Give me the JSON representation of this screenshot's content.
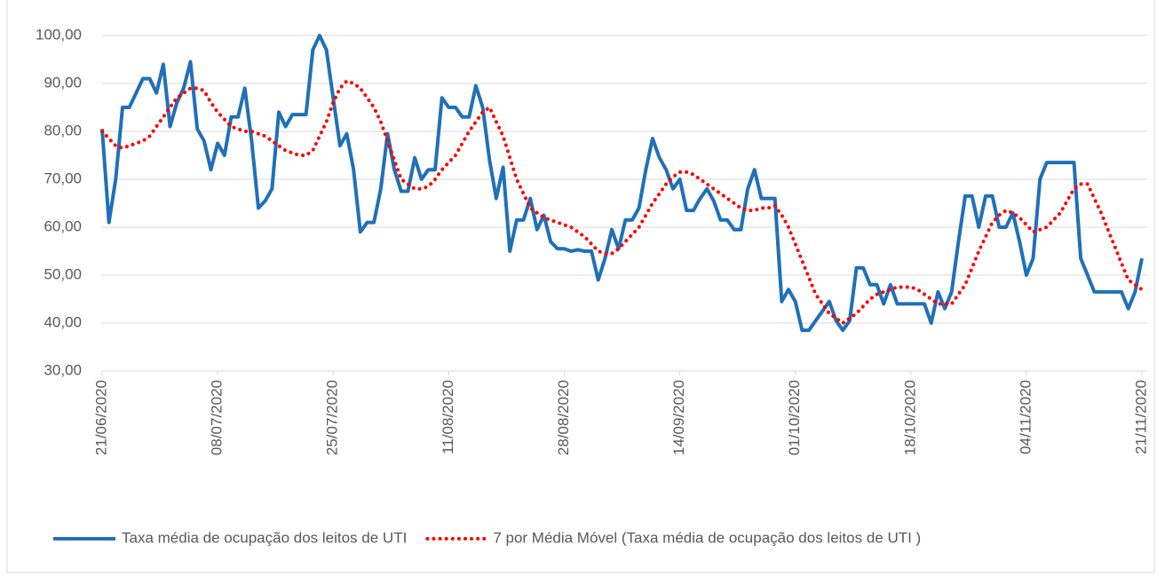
{
  "chart_data": {
    "type": "line",
    "categories": [
      "21/06/2020",
      null,
      null,
      null,
      null,
      null,
      null,
      null,
      null,
      null,
      null,
      null,
      null,
      null,
      null,
      null,
      null,
      "08/07/2020",
      null,
      null,
      null,
      null,
      null,
      null,
      null,
      null,
      null,
      null,
      null,
      null,
      null,
      null,
      null,
      null,
      "25/07/2020",
      null,
      null,
      null,
      null,
      null,
      null,
      null,
      null,
      null,
      null,
      null,
      null,
      null,
      null,
      null,
      null,
      "11/08/2020",
      null,
      null,
      null,
      null,
      null,
      null,
      null,
      null,
      null,
      null,
      null,
      null,
      null,
      null,
      null,
      null,
      "28/08/2020",
      null,
      null,
      null,
      null,
      null,
      null,
      null,
      null,
      null,
      null,
      null,
      null,
      null,
      null,
      null,
      null,
      "14/09/2020",
      null,
      null,
      null,
      null,
      null,
      null,
      null,
      null,
      null,
      null,
      null,
      null,
      null,
      null,
      null,
      null,
      "01/10/2020",
      null,
      null,
      null,
      null,
      null,
      null,
      null,
      null,
      null,
      null,
      null,
      null,
      null,
      null,
      null,
      null,
      "18/10/2020",
      null,
      null,
      null,
      null,
      null,
      null,
      null,
      null,
      null,
      null,
      null,
      null,
      null,
      null,
      null,
      null,
      "04/11/2020",
      null,
      null,
      null,
      null,
      null,
      null,
      null,
      null,
      null,
      null,
      null,
      null,
      null,
      null,
      null,
      null,
      "21/11/2020"
    ],
    "series": [
      {
        "name": "Taxa média de ocupação dos leitos de UTI",
        "color": "#1f70b8",
        "style": "solid",
        "values": [
          80.5,
          61,
          70,
          85,
          85,
          88,
          91,
          91,
          88,
          94,
          81,
          86,
          89,
          94.5,
          80.5,
          78,
          72,
          77.5,
          75,
          83,
          83,
          89,
          78,
          64,
          65.5,
          68,
          84,
          81,
          83.5,
          83.5,
          83.5,
          97,
          100,
          97,
          87,
          77,
          79.5,
          72,
          59,
          61,
          61,
          68,
          79.5,
          72,
          67.5,
          67.5,
          74.5,
          70,
          72,
          72,
          87,
          85,
          85,
          83,
          83,
          89.5,
          85,
          74,
          66,
          72.5,
          55,
          61.5,
          61.5,
          66,
          59.5,
          62.5,
          57,
          55.5,
          55.5,
          55,
          55.3,
          55,
          55,
          49,
          53.5,
          59.5,
          55.5,
          61.5,
          61.5,
          64,
          72,
          78.5,
          74.5,
          72,
          68,
          70,
          63.5,
          63.5,
          66,
          68,
          65.5,
          61.5,
          61.5,
          59.5,
          59.5,
          68,
          72,
          66,
          66,
          66,
          44.5,
          47,
          44.5,
          38.5,
          38.5,
          40.5,
          42.5,
          44.5,
          40.5,
          38.5,
          40.5,
          51.5,
          51.5,
          48,
          48,
          44,
          48,
          44,
          44,
          44,
          44,
          44,
          40,
          46.5,
          43,
          46.5,
          57,
          66.5,
          66.5,
          60,
          66.5,
          66.5,
          60,
          60,
          63,
          57,
          50,
          53.5,
          70,
          73.5,
          73.5,
          73.5,
          73.5,
          73.5,
          53.5,
          50,
          46.5,
          46.5,
          46.5,
          46.5,
          46.5,
          43,
          46.5,
          53.5
        ]
      },
      {
        "name": "7 por Média Móvel (Taxa média de ocupação dos leitos de UTI )",
        "color": "#ff0000",
        "style": "dotted",
        "values": [
          80,
          78.5,
          77,
          76.5,
          77,
          77.5,
          78,
          79,
          81,
          83,
          85,
          87,
          88,
          89,
          89,
          88.5,
          86,
          84,
          82.5,
          81,
          80.5,
          80,
          80,
          79.5,
          79,
          78,
          77,
          76,
          75.5,
          75,
          75,
          76,
          79,
          82,
          86,
          89,
          90.5,
          90,
          89,
          87,
          85,
          82,
          78,
          74,
          70,
          69,
          68,
          68,
          68.5,
          70,
          72,
          73.5,
          75,
          77.5,
          80,
          82,
          84,
          85,
          82,
          79,
          74.5,
          70,
          67,
          64,
          63,
          62,
          61.5,
          61,
          60.5,
          60,
          59,
          58,
          56.5,
          55,
          54.5,
          54.5,
          55.5,
          57,
          58.5,
          60,
          62.5,
          65,
          67,
          69,
          70.5,
          71.5,
          71.5,
          71,
          70,
          69,
          68,
          67,
          66,
          65,
          64,
          63.5,
          63.5,
          64,
          64,
          64.5,
          62.5,
          60,
          56.5,
          53,
          49.5,
          46,
          44,
          42,
          41,
          40,
          41,
          42,
          43.5,
          45,
          46,
          46.5,
          47,
          47.5,
          47.5,
          47.5,
          47,
          46,
          45,
          44,
          44,
          44,
          46,
          48,
          51.5,
          55,
          58,
          61,
          62.5,
          63.5,
          63,
          62,
          60.5,
          59,
          59.5,
          60,
          61.5,
          63,
          65.5,
          68,
          69,
          69,
          66,
          63,
          59.5,
          56,
          52.5,
          49,
          48,
          47
        ]
      }
    ],
    "ylim": [
      30,
      100
    ],
    "yticks": [
      {
        "value": 30,
        "label": "30,00"
      },
      {
        "value": 40,
        "label": "40,00"
      },
      {
        "value": 50,
        "label": "50,00"
      },
      {
        "value": 60,
        "label": "60,00"
      },
      {
        "value": 70,
        "label": "70,00"
      },
      {
        "value": 80,
        "label": "80,00"
      },
      {
        "value": 90,
        "label": "90,00"
      },
      {
        "value": 100,
        "label": "100,00"
      }
    ],
    "grid": true,
    "legend": "bottom"
  }
}
